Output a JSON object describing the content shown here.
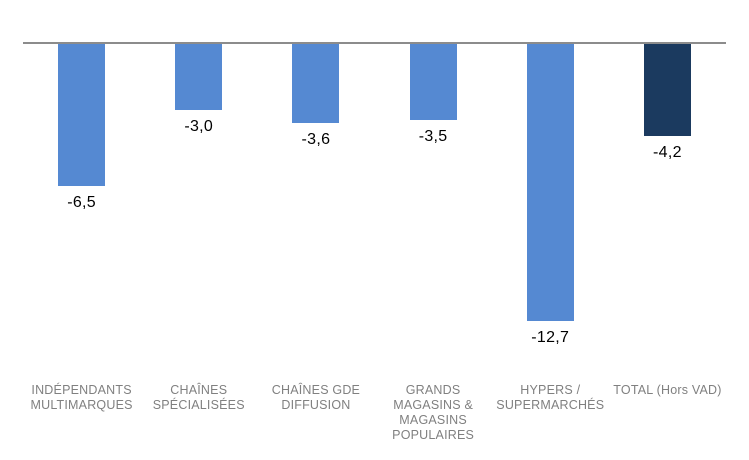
{
  "chart_data": {
    "type": "bar",
    "orientation": "vertical",
    "title": "",
    "xlabel": "",
    "ylabel": "",
    "categories": [
      "INDÉPENDANTS\nMULTIMARQUES",
      "CHAÎNES\nSPÉCIALISÉES",
      "CHAÎNES GDE\nDIFFUSION",
      "GRANDS\nMAGASINS &\nMAGASINS\nPOPULAIRES",
      "HYPERS /\nSUPERMARCHÉS",
      "TOTAL (Hors VAD)"
    ],
    "values": [
      -6.5,
      -3.0,
      -3.6,
      -3.5,
      -12.7,
      -4.2
    ],
    "value_labels": [
      "-6,5",
      "-3,0",
      "-3,6",
      "-3,5",
      "-12,7",
      "-4,2"
    ],
    "bar_colors": [
      "#5589D2",
      "#5589D2",
      "#5589D2",
      "#5589D2",
      "#5589D2",
      "#1B3A5F"
    ],
    "ylim": [
      -14,
      0
    ],
    "baseline": 0,
    "grid": false,
    "legend": false,
    "colors": {
      "bar_blue": "#5589D2",
      "bar_navy": "#1B3A5F",
      "axis_line": "#8C8C8C",
      "category_label": "#808080",
      "value_label": "#000000",
      "background": "#FFFFFF"
    }
  }
}
